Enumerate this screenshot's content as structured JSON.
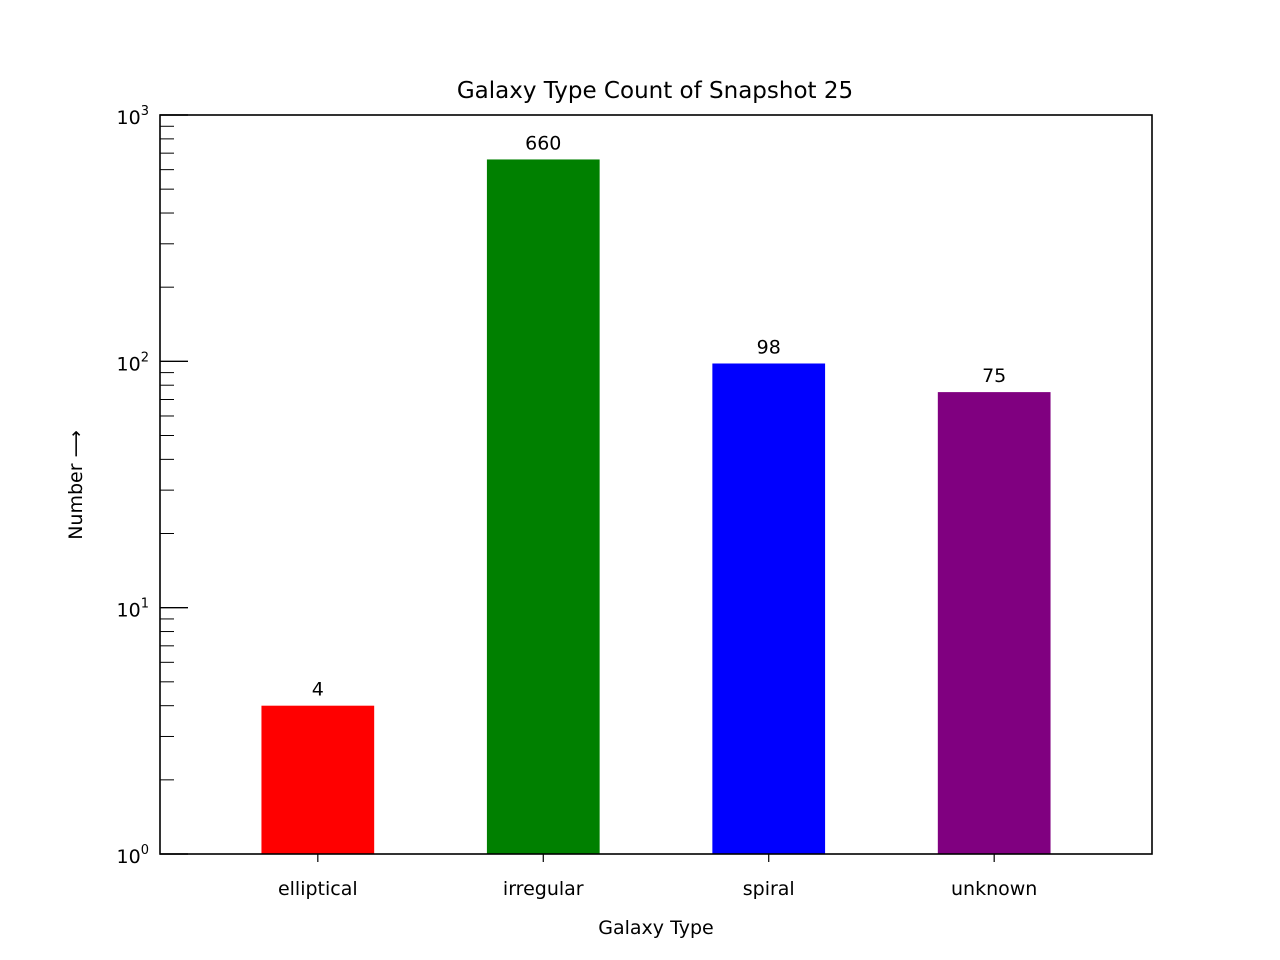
{
  "chart_data": {
    "type": "bar",
    "title": "Galaxy Type Count of Snapshot 25",
    "xlabel": "Galaxy Type",
    "ylabel": "Number ⟶",
    "yscale": "log",
    "ylim": [
      1,
      1000
    ],
    "y_ticks": [
      {
        "base": "10",
        "exp": "0",
        "value": 1
      },
      {
        "base": "10",
        "exp": "1",
        "value": 10
      },
      {
        "base": "10",
        "exp": "2",
        "value": 100
      },
      {
        "base": "10",
        "exp": "3",
        "value": 1000
      }
    ],
    "grid": false,
    "categories": [
      "elliptical",
      "irregular",
      "spiral",
      "unknown"
    ],
    "values": [
      4,
      660,
      98,
      75
    ],
    "data_labels": [
      "4",
      "660",
      "98",
      "75"
    ],
    "colors": [
      "#ff0000",
      "#008000",
      "#0000ff",
      "#800080"
    ]
  }
}
